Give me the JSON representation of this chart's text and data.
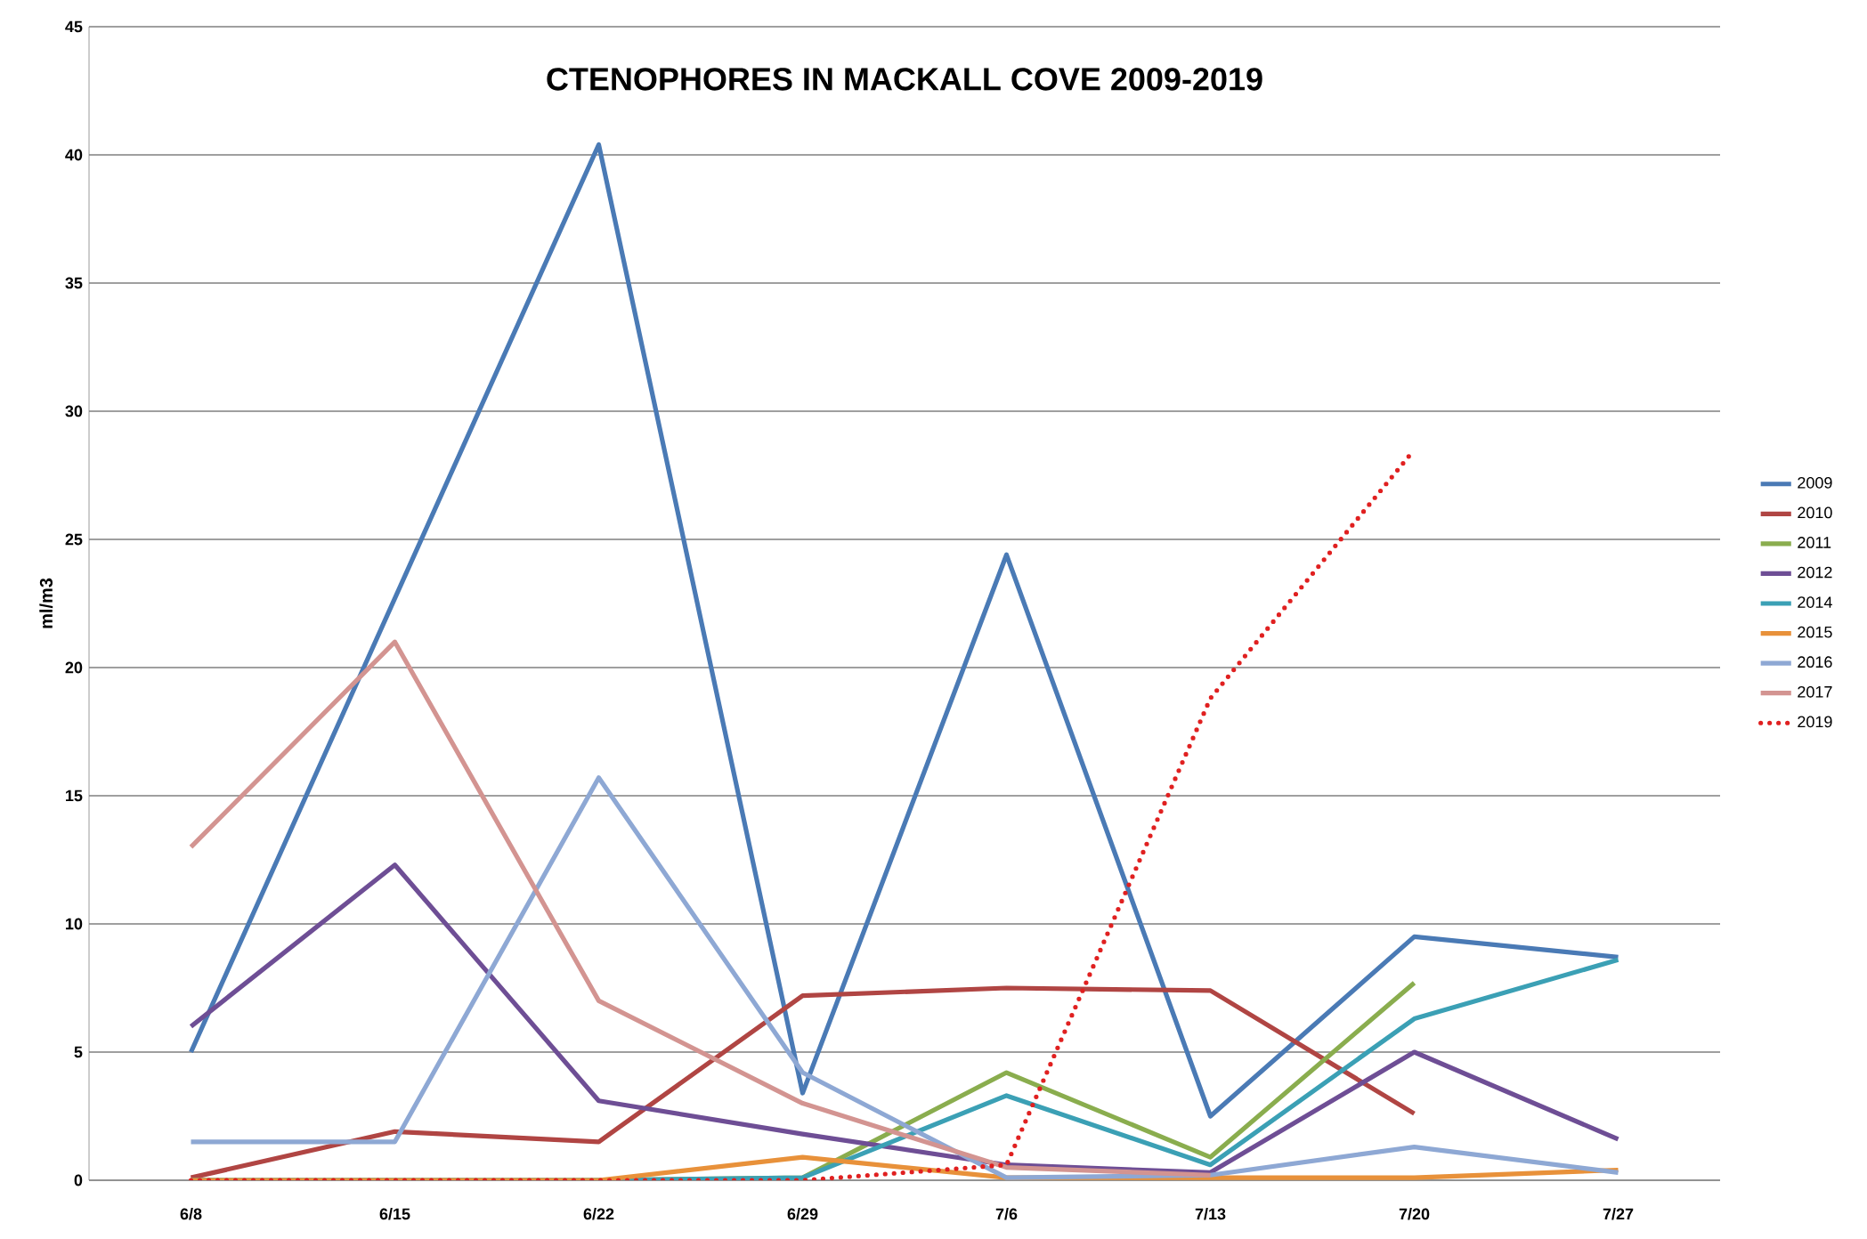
{
  "chart_data": {
    "type": "line",
    "title": "CTENOPHORES IN MACKALL COVE 2009-2019",
    "ylabel": "ml/m3",
    "categories": [
      "6/8",
      "6/15",
      "6/22",
      "6/29",
      "7/6",
      "7/13",
      "7/20",
      "7/27"
    ],
    "ylim": [
      0,
      45
    ],
    "yticks": [
      0,
      5,
      10,
      15,
      20,
      25,
      30,
      35,
      40,
      45
    ],
    "grid": "y",
    "legend": "right",
    "marker": "none",
    "series": [
      {
        "name": "2009",
        "color": "#4a7ab5",
        "values": [
          5.0,
          22.7,
          40.4,
          3.4,
          24.4,
          2.5,
          9.5,
          8.7
        ]
      },
      {
        "name": "2010",
        "color": "#b04543",
        "values": [
          0.1,
          1.9,
          1.5,
          7.2,
          7.5,
          7.4,
          2.6,
          null
        ]
      },
      {
        "name": "2011",
        "color": "#8aad4e",
        "values": [
          0,
          0,
          0,
          0.1,
          4.2,
          0.9,
          7.7,
          null
        ]
      },
      {
        "name": "2012",
        "color": "#6e4e95",
        "values": [
          6.0,
          12.3,
          3.1,
          1.8,
          0.6,
          0.3,
          5.0,
          1.6
        ]
      },
      {
        "name": "2014",
        "color": "#3ba0b5",
        "values": [
          0,
          0,
          0,
          0.1,
          3.3,
          0.6,
          6.3,
          8.6
        ]
      },
      {
        "name": "2015",
        "color": "#e8913a",
        "values": [
          0,
          0,
          0,
          0.9,
          0.1,
          0.1,
          0.1,
          0.4
        ]
      },
      {
        "name": "2016",
        "color": "#8ea8d4",
        "values": [
          1.5,
          1.5,
          15.7,
          4.2,
          0.1,
          0.2,
          1.3,
          0.3
        ]
      },
      {
        "name": "2017",
        "color": "#d39491",
        "values": [
          13.0,
          21.0,
          7.0,
          3.0,
          0.5,
          0.2,
          null,
          null
        ]
      },
      {
        "name": "2019",
        "color": "#e02020",
        "line_style": "dotted",
        "values": [
          0,
          0,
          0,
          0,
          0.6,
          18.8,
          28.5,
          null
        ]
      }
    ]
  }
}
